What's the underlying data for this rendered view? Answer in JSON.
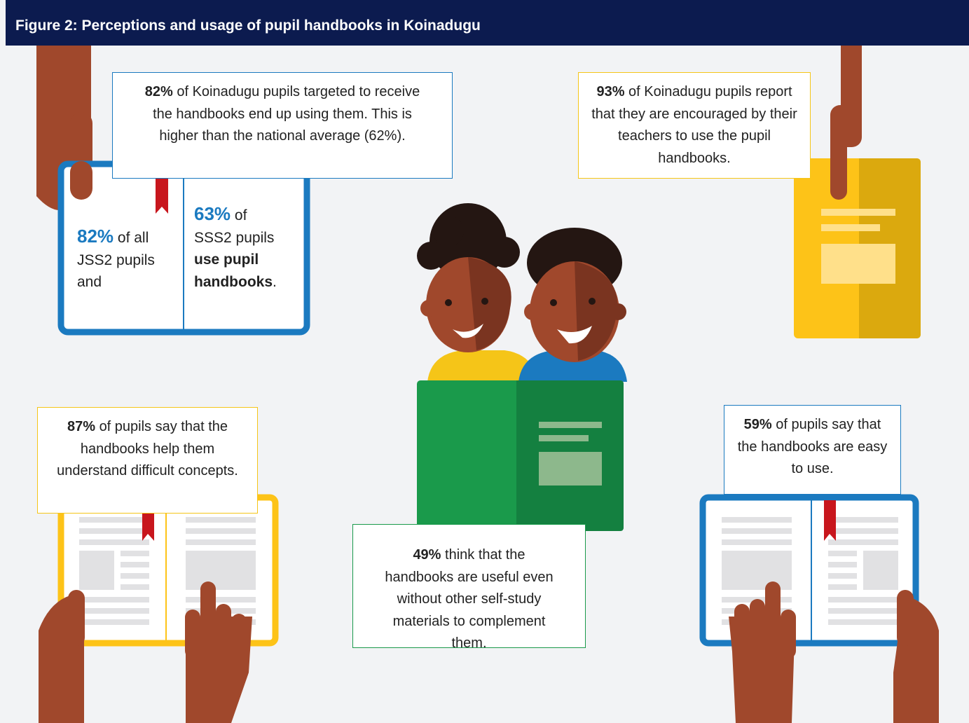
{
  "header": {
    "title": "Figure 2: Perceptions and usage of pupil handbooks in Koinadugu"
  },
  "callouts": [
    {
      "percent": "82%",
      "text": "of Koinadugu pupils targeted to receive the handbooks end up using them. This is higher than the national average (62%)."
    },
    {
      "percent": "93%",
      "text": "of Koinadugu pupils report that they are encouraged by their teachers to use the pupil handbooks."
    },
    {
      "percent": "87%",
      "text": "of pupils say that the handbooks help them understand difficult concepts."
    },
    {
      "percent": "49%",
      "text": "think that the handbooks are useful even without other self-study materials to complement them."
    },
    {
      "percent": "59%",
      "text": "of pupils say that the handbooks are easy to use."
    }
  ],
  "book": {
    "left": {
      "percent": "82%",
      "text": "of all JSS2 pupils and"
    },
    "right": {
      "percent": "63%",
      "text": "of SSS2 pupils",
      "bold": "use pupil handbooks",
      "end": "."
    }
  }
}
